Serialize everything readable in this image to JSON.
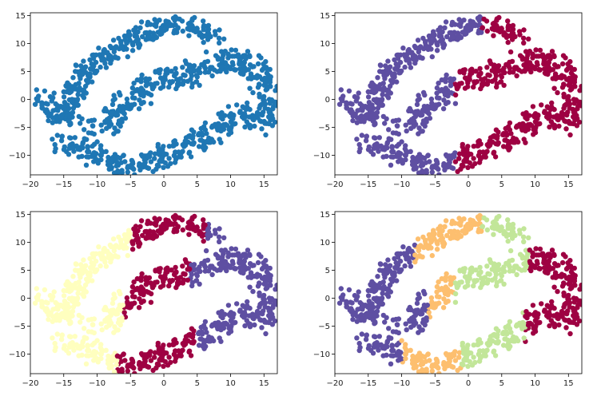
{
  "chart_data": [
    {
      "type": "scatter",
      "panel": "top-left",
      "xlim": [
        -20,
        17
      ],
      "ylim": [
        -13.5,
        15.5
      ],
      "xticks": [
        -20,
        -15,
        -10,
        -5,
        0,
        5,
        10,
        15
      ],
      "yticks": [
        -10,
        -5,
        0,
        5,
        10,
        15
      ],
      "grid": false,
      "series": [
        {
          "color": "#1f77b4",
          "points": "all data points (single color)"
        }
      ]
    },
    {
      "type": "scatter",
      "panel": "top-right",
      "xlim": [
        -20,
        17
      ],
      "ylim": [
        -13.5,
        15.5
      ],
      "xticks": [
        -20,
        -15,
        -10,
        -5,
        0,
        5,
        10,
        15
      ],
      "yticks": [
        -10,
        -5,
        0,
        5,
        10,
        15
      ],
      "grid": false,
      "clusters": 2,
      "colors": [
        "#5e4fa2",
        "#9e0142"
      ]
    },
    {
      "type": "scatter",
      "panel": "bottom-left",
      "xlim": [
        -20,
        17
      ],
      "ylim": [
        -13.5,
        15.5
      ],
      "xticks": [
        -20,
        -15,
        -10,
        -5,
        0,
        5,
        10,
        15
      ],
      "yticks": [
        -10,
        -5,
        0,
        5,
        10,
        15
      ],
      "grid": false,
      "clusters": 3,
      "colors": [
        "#ffffbf",
        "#9e0142",
        "#5e4fa2"
      ]
    },
    {
      "type": "scatter",
      "panel": "bottom-right",
      "xlim": [
        -20,
        17
      ],
      "ylim": [
        -13.5,
        15.5
      ],
      "xticks": [
        -20,
        -15,
        -10,
        -5,
        0,
        5,
        10,
        15
      ],
      "yticks": [
        -10,
        -5,
        0,
        5,
        10,
        15
      ],
      "grid": false,
      "clusters": 4,
      "colors": [
        "#5e4fa2",
        "#fdbf6f",
        "#c2e699",
        "#9e0142"
      ]
    }
  ],
  "tick_labels": {
    "x": [
      "−20",
      "−15",
      "−10",
      "−5",
      "0",
      "5",
      "10",
      "15"
    ],
    "y": [
      "−10",
      "−5",
      "0",
      "5",
      "10",
      "15"
    ]
  }
}
